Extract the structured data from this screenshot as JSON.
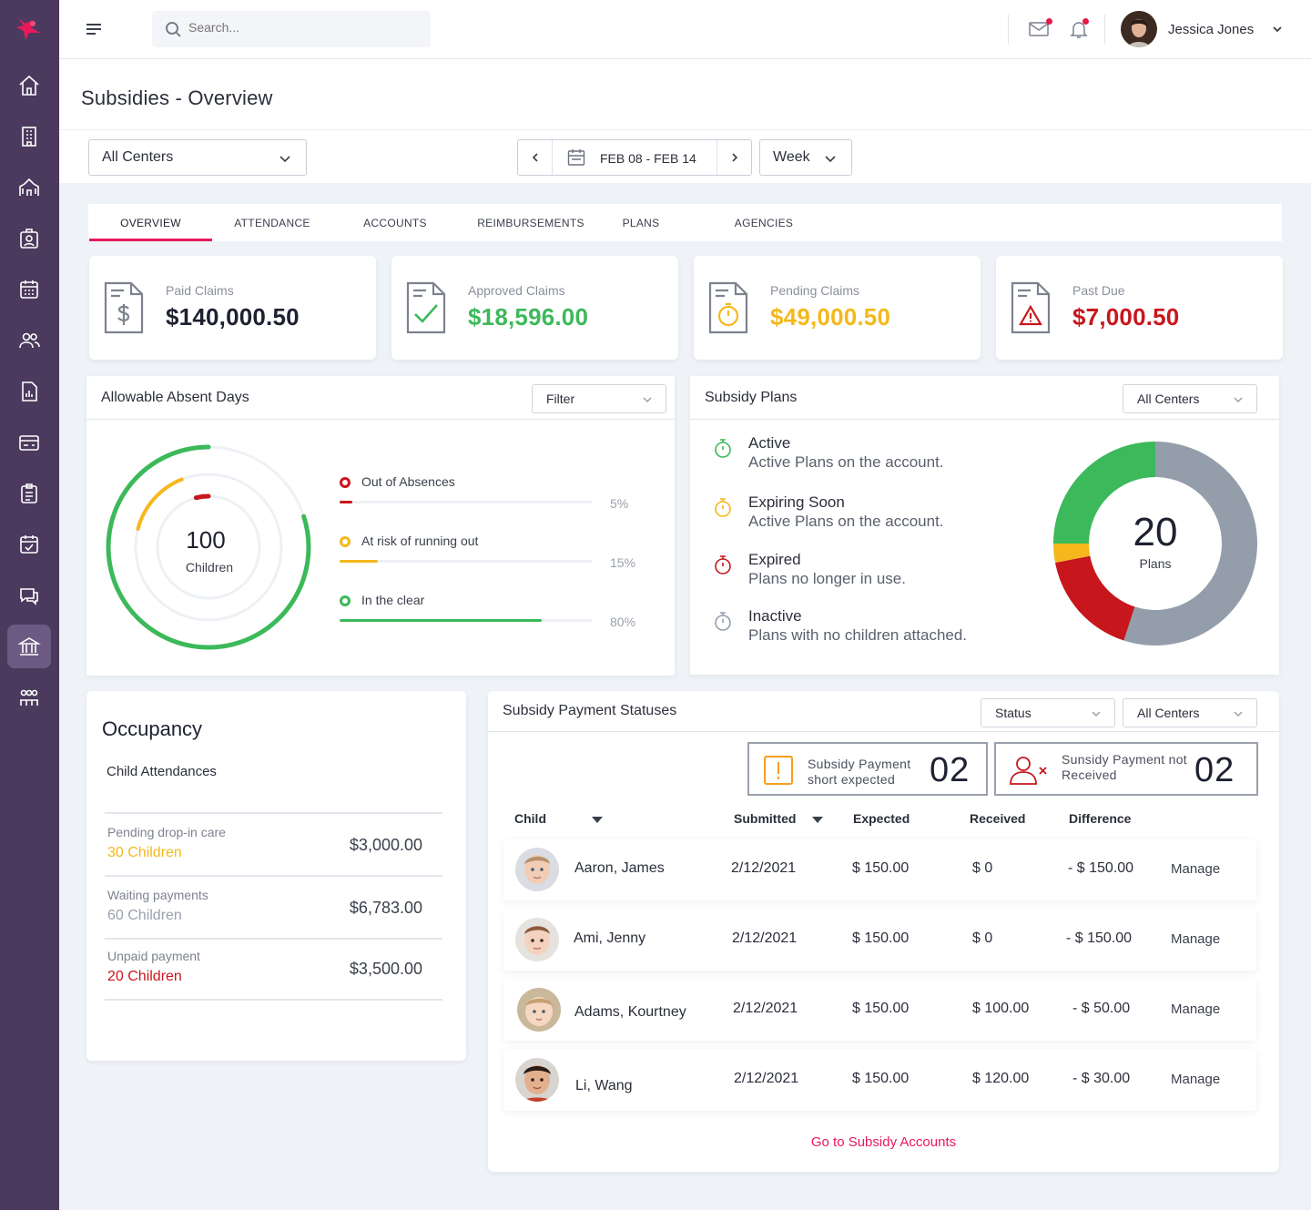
{
  "search": {
    "placeholder": "Search..."
  },
  "user": {
    "name": "Jessica Jones"
  },
  "page": {
    "title": "Subsidies - Overview"
  },
  "filters": {
    "center": "All Centers",
    "date_range": "FEB 08 - FEB 14",
    "period": "Week"
  },
  "tabs": [
    {
      "label": "OVERVIEW",
      "active": true
    },
    {
      "label": "ATTENDANCE"
    },
    {
      "label": "ACCOUNTS"
    },
    {
      "label": "REIMBURSEMENTS"
    },
    {
      "label": "PLANS"
    },
    {
      "label": "AGENCIES"
    }
  ],
  "stats": [
    {
      "label": "Paid Claims",
      "value": "$140,000.50",
      "color": "#1d2130",
      "icon": "dollar-document-icon"
    },
    {
      "label": "Approved Claims",
      "value": "$18,596.00",
      "color": "#3cb95a",
      "icon": "check-document-icon"
    },
    {
      "label": "Pending Claims",
      "value": "$49,000.50",
      "color": "#f5b81c",
      "icon": "timer-document-icon"
    },
    {
      "label": "Past Due",
      "value": "$7,000.50",
      "color": "#c8161d",
      "icon": "warning-document-icon"
    }
  ],
  "absent_days": {
    "title": "Allowable Absent Days",
    "filter": "Filter",
    "total": "100",
    "total_label": "Children",
    "items": [
      {
        "label": "Out of Absences",
        "pct": "5%",
        "value": 0.05,
        "color": "#c8161d"
      },
      {
        "label": "At risk of running out",
        "pct": "15%",
        "value": 0.15,
        "color": "#f5b81c"
      },
      {
        "label": "In the clear",
        "pct": "80%",
        "value": 0.8,
        "color": "#3cb95a"
      }
    ]
  },
  "subsidy_plans": {
    "title": "Subsidy Plans",
    "filter": "All Centers",
    "total": "20",
    "total_label": "Plans",
    "items": [
      {
        "title": "Active",
        "desc": "Active Plans on the account.",
        "color": "#3cb95a",
        "share": 0.25
      },
      {
        "title": "Expiring Soon",
        "desc": "Active Plans on the account.",
        "color": "#f5b81c",
        "share": 0.03
      },
      {
        "title": "Expired",
        "desc": "Plans no longer in use.",
        "color": "#c8161d",
        "share": 0.17
      },
      {
        "title": "Inactive",
        "desc": "Plans with no children attached.",
        "color": "#949eab",
        "share": 0.55
      }
    ]
  },
  "occupancy": {
    "title": "Occupancy",
    "subtitle": "Child Attendances",
    "rows": [
      {
        "label": "Pending drop-in care",
        "count": "30 Children",
        "amount": "$3,000.00",
        "color": "#f5b81c"
      },
      {
        "label": "Waiting payments",
        "count": "60 Children",
        "amount": "$6,783.00",
        "color": "#9aa0ac"
      },
      {
        "label": "Unpaid payment",
        "count": "20 Children",
        "amount": "$3,500.00",
        "color": "#c8161d"
      }
    ]
  },
  "payments": {
    "title": "Subsidy Payment Statuses",
    "status_filter": "Status",
    "center_filter": "All Centers",
    "summary": [
      {
        "label_1": "Subsidy Payment",
        "label_2": "short expected",
        "count": "02"
      },
      {
        "label_1": "Sunsidy Payment not",
        "label_2": "Received",
        "count": "02"
      }
    ],
    "columns": {
      "child": "Child",
      "submitted": "Submitted",
      "expected": "Expected",
      "received": "Received",
      "difference": "Difference"
    },
    "rows": [
      {
        "name": "Aaron, James",
        "submitted": "2/12/2021",
        "expected": "$ 150.00",
        "received": "$ 0",
        "difference": "- $ 150.00",
        "action": "Manage"
      },
      {
        "name": "Ami, Jenny",
        "submitted": "2/12/2021",
        "expected": "$ 150.00",
        "received": "$ 0",
        "difference": "- $ 150.00",
        "action": "Manage"
      },
      {
        "name": "Adams, Kourtney",
        "submitted": "2/12/2021",
        "expected": "$ 150.00",
        "received": "$ 100.00",
        "difference": "- $ 50.00",
        "action": "Manage"
      },
      {
        "name": "Li, Wang",
        "submitted": "2/12/2021",
        "expected": "$ 150.00",
        "received": "$ 120.00",
        "difference": "- $ 30.00",
        "action": "Manage"
      }
    ],
    "footer_link": "Go to Subsidy Accounts"
  },
  "colors": {
    "accent": "#e8195b",
    "sidebar": "#4b3a5e"
  }
}
